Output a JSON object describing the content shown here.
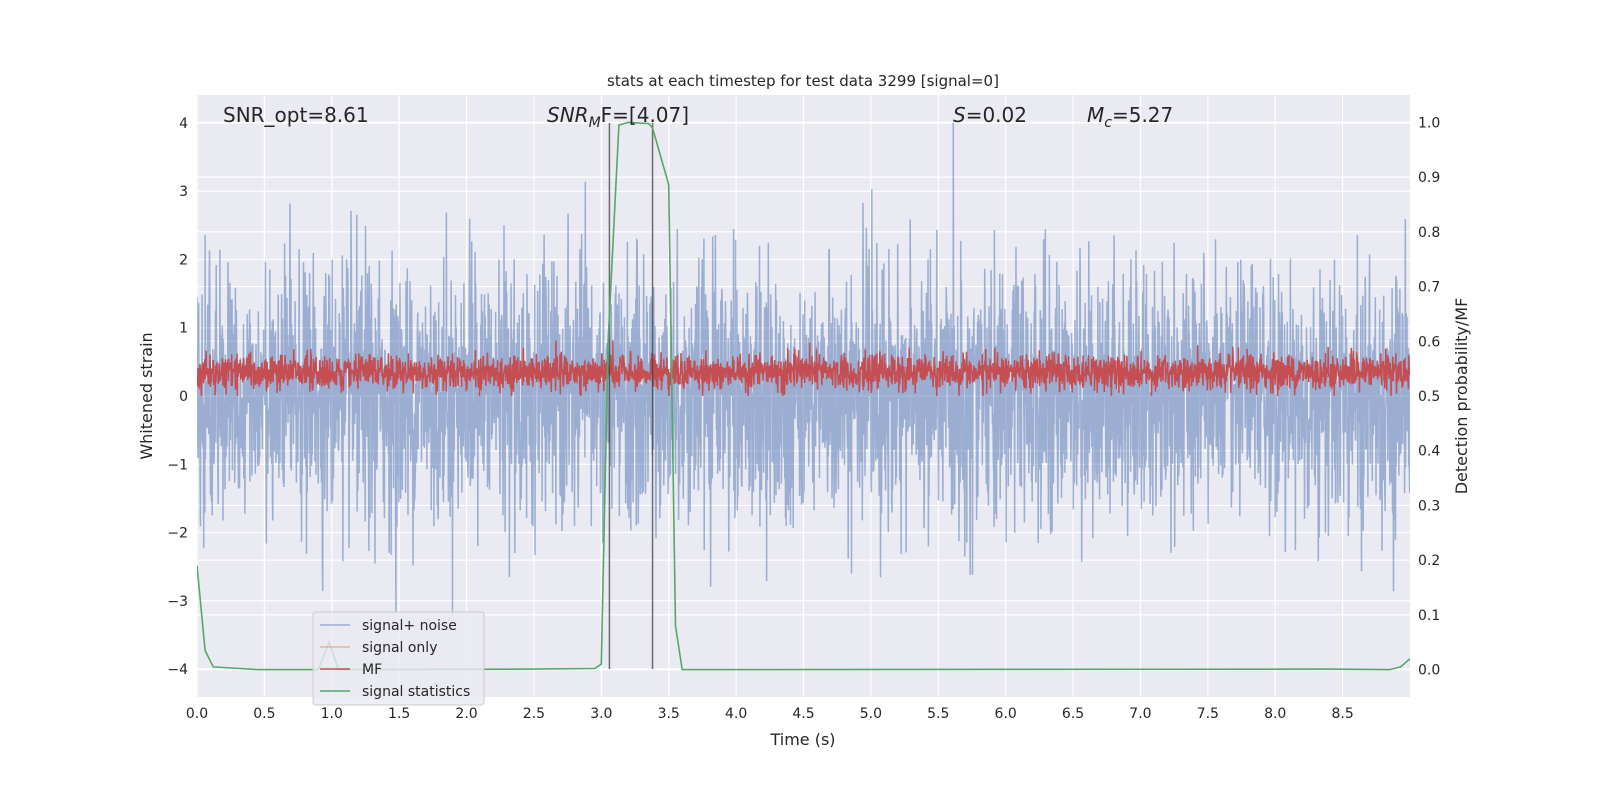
{
  "chart_data": {
    "type": "line",
    "title": "stats at each timestep for test data 3299 [signal=0]",
    "xlabel": "Time (s)",
    "ylabel": "Whitened strain",
    "ylabel_right": "Detection probability/MF",
    "xlim": [
      0,
      9.0
    ],
    "ylim": [
      -4.41,
      4.41
    ],
    "ylim_right": [
      -0.05,
      1.05
    ],
    "xticks": [
      "0.0",
      "0.5",
      "1.0",
      "1.5",
      "2.0",
      "2.5",
      "3.0",
      "3.5",
      "4.0",
      "4.5",
      "5.0",
      "5.5",
      "6.0",
      "6.5",
      "7.0",
      "7.5",
      "8.0",
      "8.5"
    ],
    "yticks": [
      "−4",
      "−3",
      "−2",
      "−1",
      "0",
      "1",
      "2",
      "3",
      "4"
    ],
    "yticks_right": [
      "0.0",
      "0.1",
      "0.2",
      "0.3",
      "0.4",
      "0.5",
      "0.6",
      "0.7",
      "0.8",
      "0.9",
      "1.0"
    ],
    "grid": true,
    "legend_position": "lower-left",
    "annotations": {
      "snr_opt": "SNR_opt=8.61",
      "snr_mf_main": "SNR",
      "snr_mf_sub": "M",
      "snr_mf_rest": "F=[4.07]",
      "s_sym": "S",
      "s_val": "=0.02",
      "mc_sym": "M",
      "mc_sub": "c",
      "mc_val": "=5.27"
    },
    "series": [
      {
        "name": "signal+ noise",
        "color": "#4c72b0",
        "axis": "left",
        "approx_range": [
          -3.7,
          4.0
        ],
        "typical_band": [
          -1.6,
          1.6
        ]
      },
      {
        "name": "signal only",
        "color": "#dd8452",
        "axis": "left"
      },
      {
        "name": "MF",
        "color": "#c44e52",
        "axis": "left",
        "approx_range": [
          0.0,
          0.85
        ],
        "typical_mean": 0.35
      },
      {
        "name": "signal statistics",
        "color": "#55a868",
        "axis": "right",
        "x": [
          0.0,
          0.06,
          0.12,
          0.25,
          0.45,
          0.9,
          0.98,
          1.05,
          2.5,
          2.95,
          3.0,
          3.05,
          3.13,
          3.2,
          3.35,
          3.38,
          3.5,
          3.55,
          3.6,
          4.0,
          8.35,
          8.85,
          8.93,
          9.0
        ],
        "y": [
          0.19,
          0.035,
          0.005,
          0.003,
          0.0,
          0.0,
          0.05,
          0.0,
          0.001,
          0.002,
          0.01,
          0.6,
          0.995,
          1.0,
          0.998,
          0.99,
          0.886,
          0.08,
          0.0,
          0.0,
          0.001,
          0.0,
          0.005,
          0.02
        ]
      }
    ],
    "vertical_lines": {
      "x": [
        3.06,
        3.38
      ],
      "color": "#404040",
      "y_range": [
        -4,
        4
      ]
    }
  }
}
